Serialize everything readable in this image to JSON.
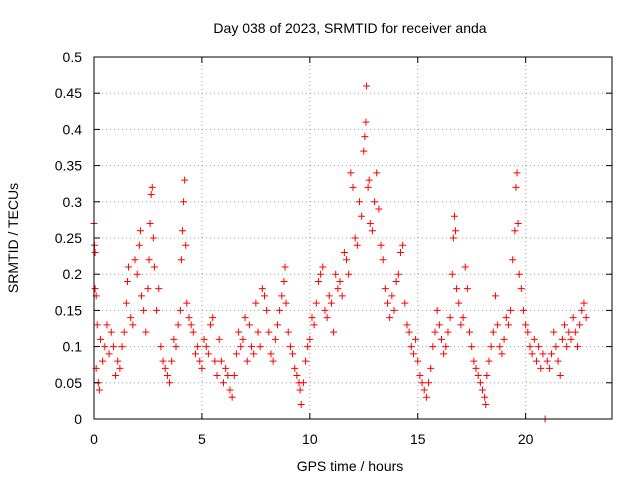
{
  "chart_data": {
    "type": "scatter",
    "title": "Day 038 of 2023, SRMTID for receiver anda",
    "xlabel": "GPS time / hours",
    "ylabel": "SRMTID / TECUs",
    "xlim": [
      0,
      24
    ],
    "ylim": [
      0,
      0.5
    ],
    "xticks": [
      0,
      5,
      10,
      15,
      20
    ],
    "yticks": [
      0,
      0.05,
      0.1,
      0.15,
      0.2,
      0.25,
      0.3,
      0.35,
      0.4,
      0.45,
      0.5
    ],
    "xtick_labels": [
      "0",
      "5",
      "10",
      "15",
      "20"
    ],
    "ytick_labels": [
      "0",
      "0.05",
      "0.1",
      "0.15",
      "0.2",
      "0.25",
      "0.3",
      "0.35",
      "0.4",
      "0.45",
      "0.5"
    ],
    "grid": true,
    "marker": "+",
    "colors": {
      "marker": "#ff0000",
      "grid": "#a0a0a0",
      "axis": "#000000"
    },
    "series": [
      {
        "name": "SRMTID",
        "points": [
          [
            0.0,
            0.27
          ],
          [
            0.02,
            0.24
          ],
          [
            0.05,
            0.23
          ],
          [
            0.05,
            0.18
          ],
          [
            0.1,
            0.17
          ],
          [
            0.1,
            0.07
          ],
          [
            0.15,
            0.13
          ],
          [
            0.2,
            0.05
          ],
          [
            0.25,
            0.04
          ],
          [
            0.3,
            0.11
          ],
          [
            0.4,
            0.08
          ],
          [
            0.5,
            0.1
          ],
          [
            0.6,
            0.13
          ],
          [
            0.7,
            0.09
          ],
          [
            0.8,
            0.12
          ],
          [
            0.9,
            0.1
          ],
          [
            1.0,
            0.06
          ],
          [
            1.1,
            0.08
          ],
          [
            1.2,
            0.07
          ],
          [
            1.3,
            0.1
          ],
          [
            1.4,
            0.12
          ],
          [
            1.5,
            0.16
          ],
          [
            1.55,
            0.19
          ],
          [
            1.6,
            0.21
          ],
          [
            1.7,
            0.14
          ],
          [
            1.8,
            0.13
          ],
          [
            1.9,
            0.22
          ],
          [
            2.0,
            0.2
          ],
          [
            2.1,
            0.24
          ],
          [
            2.15,
            0.26
          ],
          [
            2.2,
            0.17
          ],
          [
            2.3,
            0.15
          ],
          [
            2.4,
            0.12
          ],
          [
            2.5,
            0.18
          ],
          [
            2.55,
            0.22
          ],
          [
            2.6,
            0.27
          ],
          [
            2.65,
            0.31
          ],
          [
            2.7,
            0.32
          ],
          [
            2.75,
            0.25
          ],
          [
            2.8,
            0.21
          ],
          [
            2.9,
            0.15
          ],
          [
            3.0,
            0.18
          ],
          [
            3.1,
            0.1
          ],
          [
            3.2,
            0.08
          ],
          [
            3.3,
            0.07
          ],
          [
            3.4,
            0.06
          ],
          [
            3.5,
            0.05
          ],
          [
            3.6,
            0.08
          ],
          [
            3.7,
            0.11
          ],
          [
            3.8,
            0.1
          ],
          [
            3.9,
            0.13
          ],
          [
            4.0,
            0.15
          ],
          [
            4.05,
            0.22
          ],
          [
            4.1,
            0.26
          ],
          [
            4.15,
            0.3
          ],
          [
            4.2,
            0.33
          ],
          [
            4.25,
            0.24
          ],
          [
            4.3,
            0.16
          ],
          [
            4.4,
            0.14
          ],
          [
            4.5,
            0.13
          ],
          [
            4.6,
            0.12
          ],
          [
            4.7,
            0.09
          ],
          [
            4.8,
            0.1
          ],
          [
            4.9,
            0.08
          ],
          [
            5.0,
            0.07
          ],
          [
            5.1,
            0.11
          ],
          [
            5.2,
            0.1
          ],
          [
            5.3,
            0.09
          ],
          [
            5.4,
            0.13
          ],
          [
            5.5,
            0.14
          ],
          [
            5.6,
            0.08
          ],
          [
            5.7,
            0.06
          ],
          [
            5.8,
            0.11
          ],
          [
            5.9,
            0.08
          ],
          [
            6.0,
            0.05
          ],
          [
            6.1,
            0.07
          ],
          [
            6.2,
            0.06
          ],
          [
            6.3,
            0.04
          ],
          [
            6.4,
            0.03
          ],
          [
            6.5,
            0.06
          ],
          [
            6.6,
            0.09
          ],
          [
            6.7,
            0.12
          ],
          [
            6.8,
            0.1
          ],
          [
            6.9,
            0.11
          ],
          [
            7.0,
            0.14
          ],
          [
            7.1,
            0.08
          ],
          [
            7.2,
            0.13
          ],
          [
            7.3,
            0.1
          ],
          [
            7.4,
            0.09
          ],
          [
            7.5,
            0.16
          ],
          [
            7.6,
            0.12
          ],
          [
            7.7,
            0.1
          ],
          [
            7.8,
            0.18
          ],
          [
            7.9,
            0.17
          ],
          [
            8.0,
            0.15
          ],
          [
            8.1,
            0.12
          ],
          [
            8.2,
            0.09
          ],
          [
            8.3,
            0.08
          ],
          [
            8.4,
            0.11
          ],
          [
            8.5,
            0.13
          ],
          [
            8.6,
            0.15
          ],
          [
            8.7,
            0.17
          ],
          [
            8.8,
            0.19
          ],
          [
            8.85,
            0.21
          ],
          [
            8.9,
            0.16
          ],
          [
            9.0,
            0.12
          ],
          [
            9.1,
            0.1
          ],
          [
            9.2,
            0.09
          ],
          [
            9.3,
            0.07
          ],
          [
            9.4,
            0.06
          ],
          [
            9.5,
            0.05
          ],
          [
            9.55,
            0.04
          ],
          [
            9.6,
            0.02
          ],
          [
            9.7,
            0.05
          ],
          [
            9.8,
            0.08
          ],
          [
            9.9,
            0.1
          ],
          [
            10.0,
            0.11
          ],
          [
            10.1,
            0.14
          ],
          [
            10.2,
            0.13
          ],
          [
            10.3,
            0.16
          ],
          [
            10.4,
            0.19
          ],
          [
            10.5,
            0.2
          ],
          [
            10.6,
            0.21
          ],
          [
            10.7,
            0.15
          ],
          [
            10.8,
            0.14
          ],
          [
            10.9,
            0.17
          ],
          [
            11.0,
            0.16
          ],
          [
            11.1,
            0.12
          ],
          [
            11.2,
            0.2
          ],
          [
            11.3,
            0.18
          ],
          [
            11.4,
            0.19
          ],
          [
            11.5,
            0.17
          ],
          [
            11.6,
            0.23
          ],
          [
            11.7,
            0.22
          ],
          [
            11.8,
            0.2
          ],
          [
            11.9,
            0.34
          ],
          [
            12.0,
            0.32
          ],
          [
            12.1,
            0.25
          ],
          [
            12.2,
            0.24
          ],
          [
            12.3,
            0.3
          ],
          [
            12.4,
            0.28
          ],
          [
            12.5,
            0.37
          ],
          [
            12.55,
            0.39
          ],
          [
            12.6,
            0.41
          ],
          [
            12.63,
            0.46
          ],
          [
            12.7,
            0.32
          ],
          [
            12.75,
            0.33
          ],
          [
            12.8,
            0.27
          ],
          [
            12.9,
            0.26
          ],
          [
            13.0,
            0.3
          ],
          [
            13.1,
            0.34
          ],
          [
            13.2,
            0.29
          ],
          [
            13.3,
            0.24
          ],
          [
            13.4,
            0.22
          ],
          [
            13.5,
            0.18
          ],
          [
            13.6,
            0.16
          ],
          [
            13.7,
            0.14
          ],
          [
            13.8,
            0.17
          ],
          [
            13.9,
            0.15
          ],
          [
            14.0,
            0.19
          ],
          [
            14.1,
            0.2
          ],
          [
            14.2,
            0.23
          ],
          [
            14.3,
            0.24
          ],
          [
            14.4,
            0.16
          ],
          [
            14.5,
            0.13
          ],
          [
            14.6,
            0.12
          ],
          [
            14.7,
            0.1
          ],
          [
            14.8,
            0.09
          ],
          [
            14.9,
            0.11
          ],
          [
            15.0,
            0.08
          ],
          [
            15.1,
            0.06
          ],
          [
            15.2,
            0.05
          ],
          [
            15.3,
            0.04
          ],
          [
            15.4,
            0.03
          ],
          [
            15.5,
            0.05
          ],
          [
            15.6,
            0.07
          ],
          [
            15.7,
            0.1
          ],
          [
            15.8,
            0.12
          ],
          [
            15.9,
            0.15
          ],
          [
            16.0,
            0.13
          ],
          [
            16.1,
            0.11
          ],
          [
            16.2,
            0.09
          ],
          [
            16.3,
            0.1
          ],
          [
            16.4,
            0.12
          ],
          [
            16.5,
            0.14
          ],
          [
            16.6,
            0.2
          ],
          [
            16.65,
            0.25
          ],
          [
            16.7,
            0.28
          ],
          [
            16.75,
            0.26
          ],
          [
            16.8,
            0.18
          ],
          [
            16.9,
            0.16
          ],
          [
            17.0,
            0.13
          ],
          [
            17.1,
            0.14
          ],
          [
            17.2,
            0.21
          ],
          [
            17.3,
            0.18
          ],
          [
            17.4,
            0.12
          ],
          [
            17.5,
            0.1
          ],
          [
            17.6,
            0.08
          ],
          [
            17.7,
            0.07
          ],
          [
            17.8,
            0.06
          ],
          [
            17.9,
            0.05
          ],
          [
            18.0,
            0.04
          ],
          [
            18.1,
            0.03
          ],
          [
            18.15,
            0.02
          ],
          [
            18.2,
            0.06
          ],
          [
            18.3,
            0.08
          ],
          [
            18.4,
            0.1
          ],
          [
            18.5,
            0.12
          ],
          [
            18.6,
            0.17
          ],
          [
            18.7,
            0.13
          ],
          [
            18.8,
            0.1
          ],
          [
            18.9,
            0.09
          ],
          [
            19.0,
            0.11
          ],
          [
            19.1,
            0.14
          ],
          [
            19.2,
            0.13
          ],
          [
            19.3,
            0.15
          ],
          [
            19.4,
            0.22
          ],
          [
            19.5,
            0.26
          ],
          [
            19.55,
            0.32
          ],
          [
            19.6,
            0.34
          ],
          [
            19.65,
            0.27
          ],
          [
            19.7,
            0.2
          ],
          [
            19.8,
            0.18
          ],
          [
            19.9,
            0.15
          ],
          [
            20.0,
            0.13
          ],
          [
            20.1,
            0.12
          ],
          [
            20.2,
            0.1
          ],
          [
            20.3,
            0.09
          ],
          [
            20.4,
            0.11
          ],
          [
            20.5,
            0.08
          ],
          [
            20.6,
            0.1
          ],
          [
            20.7,
            0.07
          ],
          [
            20.8,
            0.09
          ],
          [
            20.9,
            0.0
          ],
          [
            21.0,
            0.08
          ],
          [
            21.1,
            0.07
          ],
          [
            21.2,
            0.09
          ],
          [
            21.3,
            0.12
          ],
          [
            21.4,
            0.1
          ],
          [
            21.5,
            0.08
          ],
          [
            21.6,
            0.06
          ],
          [
            21.7,
            0.11
          ],
          [
            21.8,
            0.13
          ],
          [
            21.9,
            0.1
          ],
          [
            22.0,
            0.12
          ],
          [
            22.1,
            0.11
          ],
          [
            22.2,
            0.14
          ],
          [
            22.3,
            0.12
          ],
          [
            22.4,
            0.1
          ],
          [
            22.5,
            0.13
          ],
          [
            22.6,
            0.15
          ],
          [
            22.7,
            0.16
          ],
          [
            22.8,
            0.14
          ]
        ]
      }
    ]
  }
}
